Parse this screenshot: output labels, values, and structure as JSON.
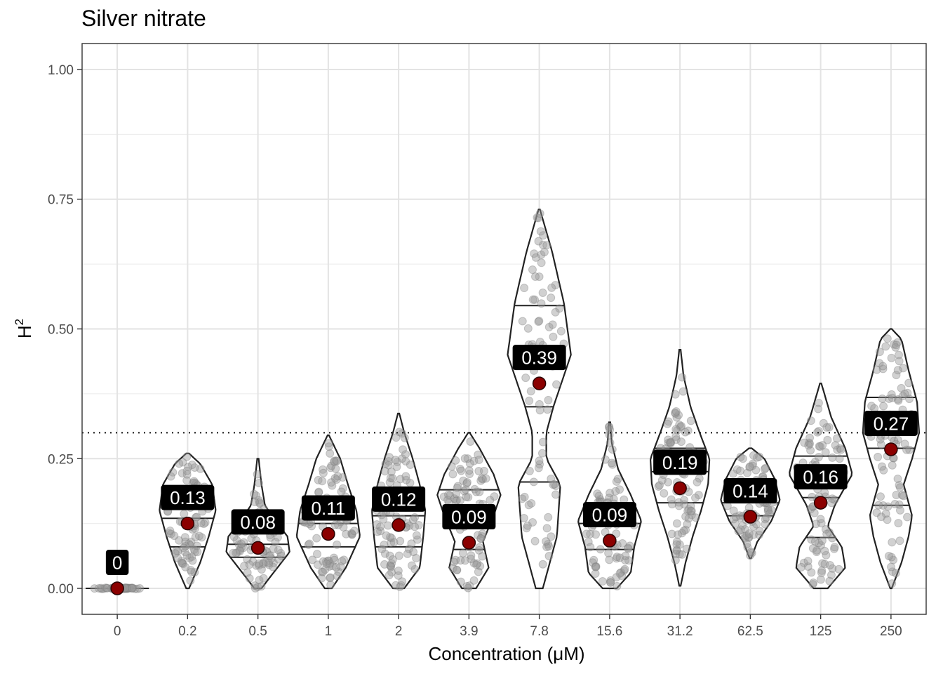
{
  "chart_data": {
    "type": "violin",
    "title": "Silver nitrate",
    "xlabel": "Concentration (μM)",
    "ylabel": "H",
    "ylabel_superscript": "2",
    "ylim": [
      -0.05,
      1.05
    ],
    "yticks": [
      0,
      0.25,
      0.5,
      0.75,
      1.0
    ],
    "ytick_labels": [
      "0.00",
      "0.25",
      "0.50",
      "0.75",
      "1.00"
    ],
    "reference_line": 0.3,
    "grid": true,
    "colors": {
      "point": "#999999",
      "mean": "#8b0000",
      "outline": "#222222",
      "label_bg": "#000000"
    },
    "categories": [
      "0",
      "0.2",
      "0.5",
      "1",
      "2",
      "3.9",
      "7.8",
      "15.6",
      "31.2",
      "62.5",
      "125",
      "250"
    ],
    "means": [
      0,
      0.125,
      0.078,
      0.105,
      0.122,
      0.088,
      0.395,
      0.092,
      0.193,
      0.138,
      0.165,
      0.268
    ],
    "mean_labels": [
      "0",
      "0.13",
      "0.08",
      "0.11",
      "0.12",
      "0.09",
      "0.39",
      "0.09",
      "0.19",
      "0.14",
      "0.16",
      "0.27"
    ],
    "quartiles": [
      [
        0,
        0,
        0
      ],
      [
        0.08,
        0.135,
        0.18
      ],
      [
        0.06,
        0.085,
        0.11
      ],
      [
        0.08,
        0.125,
        0.16
      ],
      [
        0.08,
        0.14,
        0.175
      ],
      [
        0.075,
        0.13,
        0.19
      ],
      [
        0.205,
        0.35,
        0.545
      ],
      [
        0.075,
        0.125,
        0.165
      ],
      [
        0.165,
        0.225,
        0.27
      ],
      [
        0.14,
        0.165,
        0.2
      ],
      [
        0.098,
        0.175,
        0.255
      ],
      [
        0.16,
        0.27,
        0.368
      ]
    ],
    "ranges": [
      [
        0,
        0
      ],
      [
        0,
        0.26
      ],
      [
        0,
        0.25
      ],
      [
        0,
        0.295
      ],
      [
        0,
        0.337
      ],
      [
        0,
        0.3
      ],
      [
        0,
        0.73
      ],
      [
        0,
        0.32
      ],
      [
        0.005,
        0.46
      ],
      [
        0.058,
        0.27
      ],
      [
        0,
        0.395
      ],
      [
        0,
        0.5
      ]
    ],
    "half_widths": [
      [
        [
          0,
          0.45
        ]
      ],
      [
        [
          0,
          0.02
        ],
        [
          0.05,
          0.18
        ],
        [
          0.1,
          0.3
        ],
        [
          0.15,
          0.4
        ],
        [
          0.2,
          0.35
        ],
        [
          0.24,
          0.18
        ],
        [
          0.26,
          0.02
        ]
      ],
      [
        [
          0,
          0.05
        ],
        [
          0.03,
          0.22
        ],
        [
          0.07,
          0.45
        ],
        [
          0.1,
          0.42
        ],
        [
          0.13,
          0.25
        ],
        [
          0.16,
          0.1
        ],
        [
          0.2,
          0.05
        ],
        [
          0.25,
          0.01
        ]
      ],
      [
        [
          0,
          0.05
        ],
        [
          0.04,
          0.25
        ],
        [
          0.1,
          0.45
        ],
        [
          0.15,
          0.4
        ],
        [
          0.2,
          0.28
        ],
        [
          0.25,
          0.17
        ],
        [
          0.295,
          0.01
        ]
      ],
      [
        [
          0,
          0.08
        ],
        [
          0.04,
          0.3
        ],
        [
          0.1,
          0.35
        ],
        [
          0.15,
          0.38
        ],
        [
          0.2,
          0.3
        ],
        [
          0.25,
          0.2
        ],
        [
          0.3,
          0.08
        ],
        [
          0.337,
          0.01
        ]
      ],
      [
        [
          0,
          0.1
        ],
        [
          0.04,
          0.28
        ],
        [
          0.09,
          0.2
        ],
        [
          0.14,
          0.35
        ],
        [
          0.18,
          0.45
        ],
        [
          0.22,
          0.35
        ],
        [
          0.27,
          0.15
        ],
        [
          0.3,
          0.01
        ]
      ],
      [
        [
          0,
          0.05
        ],
        [
          0.1,
          0.25
        ],
        [
          0.2,
          0.3
        ],
        [
          0.25,
          0.1
        ],
        [
          0.3,
          0.1
        ],
        [
          0.35,
          0.2
        ],
        [
          0.45,
          0.45
        ],
        [
          0.55,
          0.35
        ],
        [
          0.65,
          0.18
        ],
        [
          0.73,
          0.01
        ]
      ],
      [
        [
          0,
          0.1
        ],
        [
          0.03,
          0.3
        ],
        [
          0.08,
          0.35
        ],
        [
          0.13,
          0.45
        ],
        [
          0.18,
          0.3
        ],
        [
          0.23,
          0.12
        ],
        [
          0.28,
          0.03
        ],
        [
          0.32,
          0.01
        ]
      ],
      [
        [
          0.005,
          0.01
        ],
        [
          0.05,
          0.08
        ],
        [
          0.1,
          0.18
        ],
        [
          0.15,
          0.3
        ],
        [
          0.2,
          0.4
        ],
        [
          0.25,
          0.42
        ],
        [
          0.3,
          0.28
        ],
        [
          0.35,
          0.15
        ],
        [
          0.41,
          0.05
        ],
        [
          0.46,
          0.01
        ]
      ],
      [
        [
          0.058,
          0.01
        ],
        [
          0.09,
          0.1
        ],
        [
          0.13,
          0.3
        ],
        [
          0.17,
          0.42
        ],
        [
          0.21,
          0.35
        ],
        [
          0.25,
          0.2
        ],
        [
          0.27,
          0.02
        ]
      ],
      [
        [
          0,
          0.1
        ],
        [
          0.04,
          0.35
        ],
        [
          0.08,
          0.3
        ],
        [
          0.12,
          0.1
        ],
        [
          0.16,
          0.2
        ],
        [
          0.22,
          0.45
        ],
        [
          0.27,
          0.35
        ],
        [
          0.33,
          0.15
        ],
        [
          0.395,
          0.01
        ]
      ],
      [
        [
          0,
          0.01
        ],
        [
          0.05,
          0.15
        ],
        [
          0.1,
          0.25
        ],
        [
          0.14,
          0.3
        ],
        [
          0.2,
          0.18
        ],
        [
          0.25,
          0.3
        ],
        [
          0.3,
          0.4
        ],
        [
          0.36,
          0.37
        ],
        [
          0.42,
          0.25
        ],
        [
          0.48,
          0.15
        ],
        [
          0.5,
          0.01
        ]
      ]
    ]
  }
}
